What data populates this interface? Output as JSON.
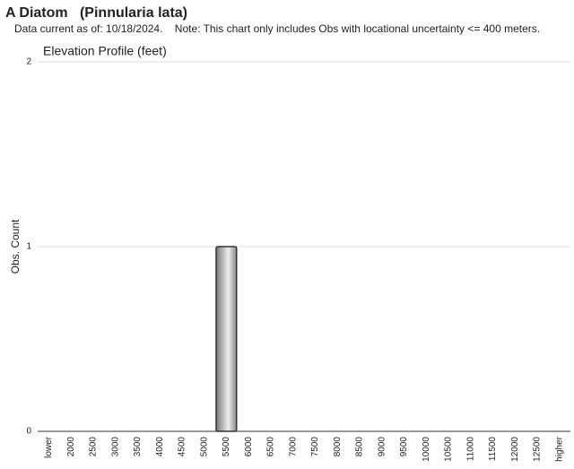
{
  "chart_data": {
    "type": "bar",
    "title": "A Diatom   (Pinnularia lata)",
    "subtitle": "Data current as of: 10/18/2024.    Note: This chart only includes Obs with locational uncertainty <= 400 meters.",
    "chart_title": "Elevation Profile (feet)",
    "y_label": "Obs. Count",
    "categories": [
      "lower",
      "2000",
      "2500",
      "3000",
      "3500",
      "4000",
      "4500",
      "5000",
      "5500",
      "6000",
      "6500",
      "7000",
      "7500",
      "8000",
      "8500",
      "9000",
      "9500",
      "10000",
      "10500",
      "11000",
      "11500",
      "12000",
      "12500",
      "higher"
    ],
    "values": [
      0,
      0,
      0,
      0,
      0,
      0,
      0,
      0,
      1,
      0,
      0,
      0,
      0,
      0,
      0,
      0,
      0,
      0,
      0,
      0,
      0,
      0,
      0,
      0
    ],
    "color": "#999999",
    "ylim": [
      0,
      2
    ],
    "yticks": [
      0,
      1,
      2
    ],
    "grid": true
  }
}
